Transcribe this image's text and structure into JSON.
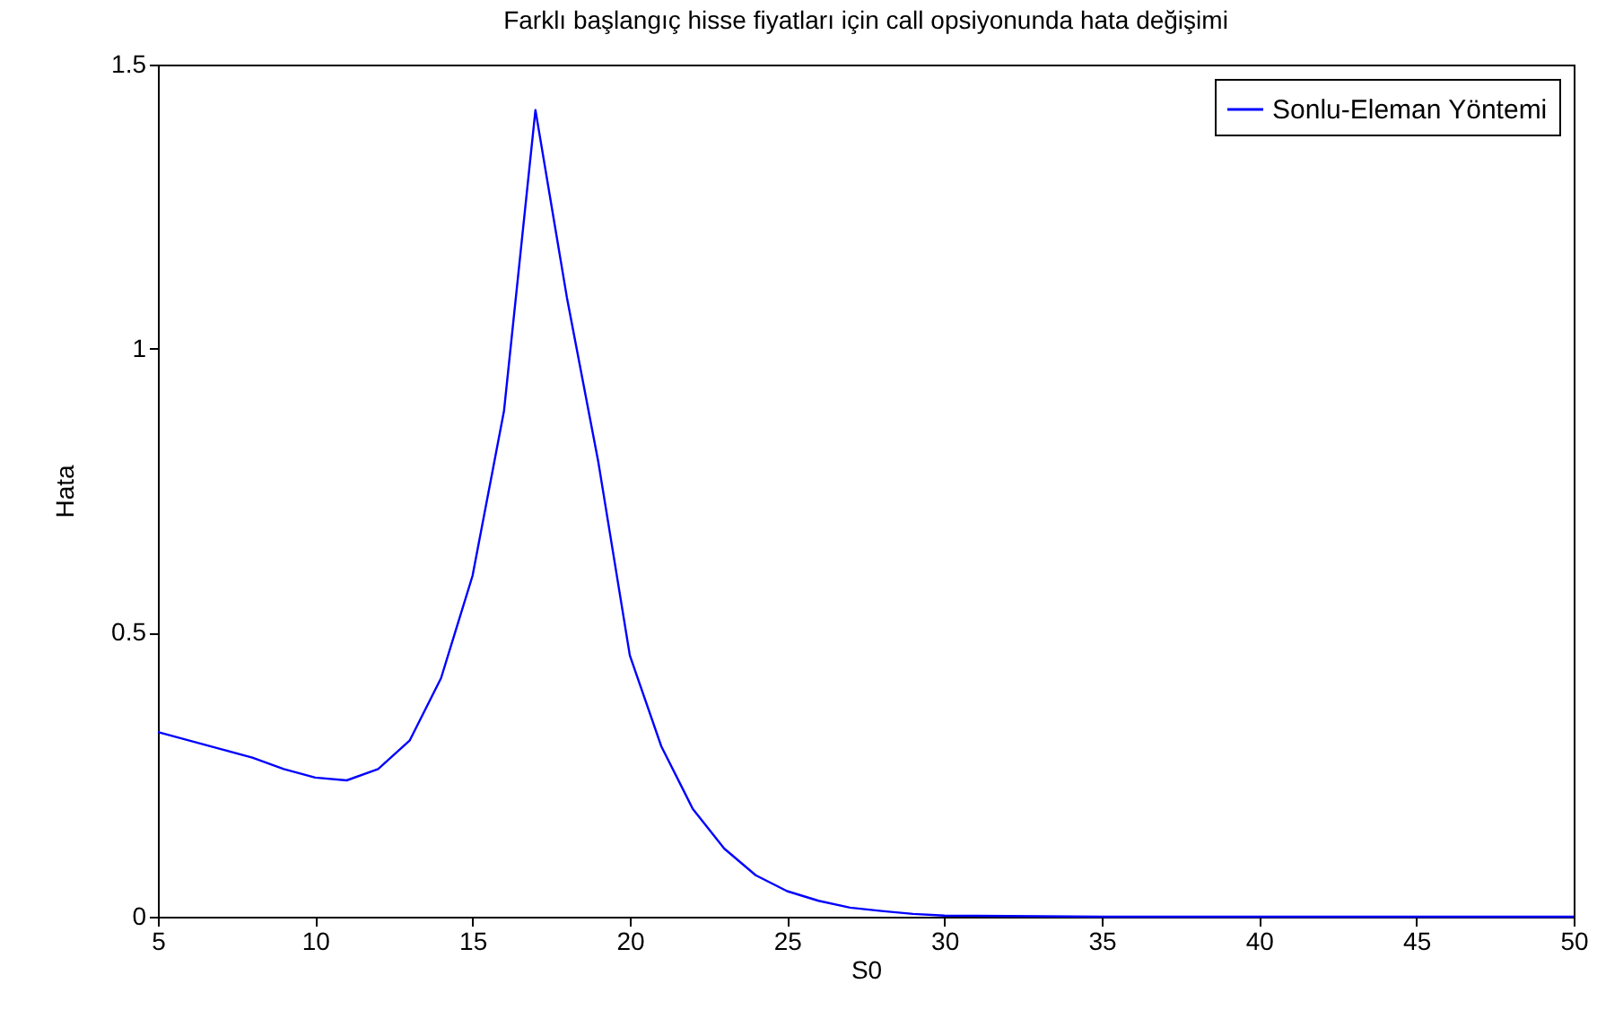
{
  "chart_data": {
    "type": "line",
    "title": "Farklı başlangıç hisse fiyatları için call opsiyonunda hata değişimi",
    "xlabel": "S0",
    "ylabel": "Hata",
    "x": [
      5,
      6,
      7,
      8,
      9,
      10,
      11,
      12,
      13,
      14,
      15,
      16,
      17,
      18,
      19,
      20,
      21,
      22,
      23,
      24,
      25,
      26,
      27,
      28,
      29,
      30,
      35,
      40,
      45,
      50
    ],
    "series": [
      {
        "name": "Sonlu-Eleman Yöntemi",
        "color": "#0000ff",
        "values": [
          0.325,
          0.31,
          0.295,
          0.28,
          0.26,
          0.245,
          0.24,
          0.26,
          0.31,
          0.42,
          0.6,
          0.89,
          1.42,
          1.09,
          0.8,
          0.46,
          0.3,
          0.19,
          0.12,
          0.073,
          0.045,
          0.028,
          0.016,
          0.01,
          0.005,
          0.002,
          0,
          0,
          0,
          0
        ]
      }
    ],
    "xlim": [
      5,
      50
    ],
    "xticks": [
      5,
      10,
      15,
      20,
      25,
      30,
      35,
      40,
      45,
      50
    ],
    "ylim": [
      0,
      1.5
    ],
    "yticks": [
      0,
      0.5,
      1,
      1.5
    ],
    "grid": false,
    "legend": "top right",
    "marker": "none",
    "line_style": "solid"
  }
}
